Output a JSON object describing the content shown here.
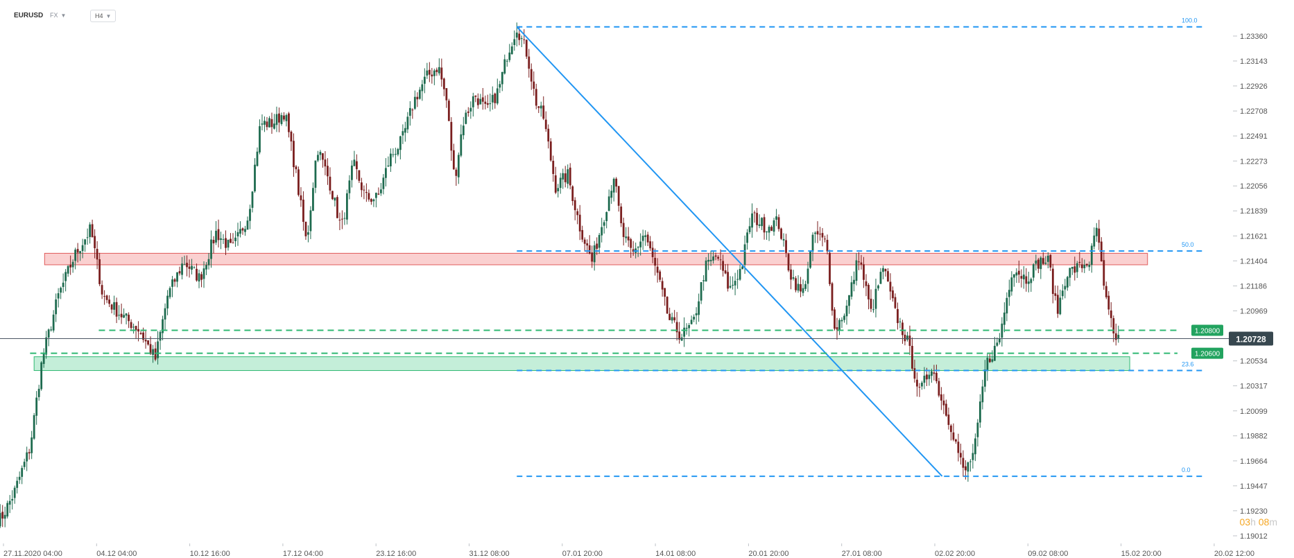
{
  "header": {
    "symbol": "EURUSD",
    "market": "FX",
    "timeframe": "H4"
  },
  "timer": {
    "h_value": "03",
    "h_unit": "h",
    "m_value": "08",
    "m_unit": "m"
  },
  "chart_data": {
    "type": "candlestick",
    "title": "",
    "ylim": [
      1.1901,
      1.2348
    ],
    "y_ticks": [
      "1.23360",
      "1.23143",
      "1.22926",
      "1.22708",
      "1.22491",
      "1.22273",
      "1.22056",
      "1.21839",
      "1.21621",
      "1.21404",
      "1.21186",
      "1.20969",
      "1.20751",
      "1.20534",
      "1.20317",
      "1.20099",
      "1.19882",
      "1.19664",
      "1.19447",
      "1.19230",
      "1.19012"
    ],
    "x_ticks": [
      "27.11.2020 04:00",
      "04.12 04:00",
      "10.12 16:00",
      "17.12 04:00",
      "23.12 16:00",
      "31.12 08:00",
      "07.01 20:00",
      "14.01 08:00",
      "20.01 20:00",
      "27.01 08:00",
      "02.02 20:00",
      "09.02 08:00",
      "15.02 20:00",
      "20.02 12:00"
    ],
    "last_price": "1.20728",
    "price_line_value": 1.20728,
    "colors": {
      "up": "#1e6b4f",
      "down": "#7a1e1e",
      "fib": "#2196f3",
      "support": "#2eb872",
      "resistance": "#e05a5a",
      "price_tag": "#37474f",
      "level_tag": "#22a35f"
    },
    "zones": [
      {
        "type": "resistance",
        "x_start": 8,
        "x_end": 1372,
        "y_low": 1.2137,
        "y_high": 1.2147
      },
      {
        "type": "support",
        "x_start": -5,
        "x_end": 1350,
        "y_low": 1.2045,
        "y_high": 1.2057
      }
    ],
    "levels": [
      {
        "value": 1.208,
        "label": "1.20800",
        "x_start": 75
      },
      {
        "value": 1.206,
        "label": "1.20600",
        "x_start": -10
      }
    ],
    "fib_levels": [
      {
        "label": "100.0",
        "value": 1.2344
      },
      {
        "label": "50.0",
        "value": 1.2149
      },
      {
        "label": "23.6",
        "value": 1.2045
      },
      {
        "label": "0.0",
        "value": 1.1953
      }
    ],
    "fib_range": {
      "x_start": 592,
      "x_end": 1440
    },
    "trendline": {
      "from": [
        592,
        1.2344
      ],
      "to": [
        1118,
        1.1953
      ]
    },
    "anchors": [
      [
        -46,
        1.1916
      ],
      [
        -30,
        1.1938
      ],
      [
        -10,
        1.1978
      ],
      [
        5,
        1.2055
      ],
      [
        25,
        1.211
      ],
      [
        45,
        1.2145
      ],
      [
        65,
        1.2168
      ],
      [
        80,
        1.211
      ],
      [
        100,
        1.2095
      ],
      [
        125,
        1.208
      ],
      [
        145,
        1.2055
      ],
      [
        160,
        1.211
      ],
      [
        180,
        1.214
      ],
      [
        200,
        1.2125
      ],
      [
        220,
        1.2165
      ],
      [
        240,
        1.215
      ],
      [
        260,
        1.218
      ],
      [
        275,
        1.226
      ],
      [
        290,
        1.226
      ],
      [
        305,
        1.227
      ],
      [
        318,
        1.222
      ],
      [
        332,
        1.2155
      ],
      [
        345,
        1.224
      ],
      [
        360,
        1.221
      ],
      [
        375,
        1.2168
      ],
      [
        390,
        1.2225
      ],
      [
        405,
        1.2195
      ],
      [
        420,
        1.2195
      ],
      [
        435,
        1.223
      ],
      [
        450,
        1.2245
      ],
      [
        465,
        1.228
      ],
      [
        480,
        1.23
      ],
      [
        495,
        1.231
      ],
      [
        505,
        1.228
      ],
      [
        515,
        1.221
      ],
      [
        525,
        1.226
      ],
      [
        540,
        1.2285
      ],
      [
        555,
        1.227
      ],
      [
        570,
        1.229
      ],
      [
        580,
        1.232
      ],
      [
        592,
        1.2344
      ],
      [
        605,
        1.232
      ],
      [
        615,
        1.228
      ],
      [
        625,
        1.2265
      ],
      [
        640,
        1.2205
      ],
      [
        655,
        1.2215
      ],
      [
        670,
        1.217
      ],
      [
        685,
        1.214
      ],
      [
        700,
        1.218
      ],
      [
        712,
        1.2215
      ],
      [
        722,
        1.2165
      ],
      [
        735,
        1.2145
      ],
      [
        750,
        1.2165
      ],
      [
        765,
        1.213
      ],
      [
        780,
        1.209
      ],
      [
        795,
        1.2075
      ],
      [
        810,
        1.2085
      ],
      [
        825,
        1.2135
      ],
      [
        840,
        1.2145
      ],
      [
        855,
        1.2115
      ],
      [
        870,
        1.2135
      ],
      [
        882,
        1.218
      ],
      [
        900,
        1.217
      ],
      [
        915,
        1.2175
      ],
      [
        930,
        1.213
      ],
      [
        945,
        1.211
      ],
      [
        960,
        1.2165
      ],
      [
        975,
        1.2155
      ],
      [
        985,
        1.208
      ],
      [
        1000,
        1.21
      ],
      [
        1015,
        1.2145
      ],
      [
        1030,
        1.2095
      ],
      [
        1045,
        1.2135
      ],
      [
        1060,
        1.2095
      ],
      [
        1075,
        1.207
      ],
      [
        1090,
        1.2025
      ],
      [
        1105,
        1.205
      ],
      [
        1115,
        1.2025
      ],
      [
        1130,
        1.1995
      ],
      [
        1145,
        1.1955
      ],
      [
        1158,
        1.1975
      ],
      [
        1172,
        1.205
      ],
      [
        1188,
        1.207
      ],
      [
        1205,
        1.2135
      ],
      [
        1222,
        1.2125
      ],
      [
        1238,
        1.214
      ],
      [
        1250,
        1.214
      ],
      [
        1260,
        1.2095
      ],
      [
        1272,
        1.213
      ],
      [
        1288,
        1.2135
      ],
      [
        1300,
        1.214
      ],
      [
        1310,
        1.217
      ],
      [
        1318,
        1.2115
      ],
      [
        1330,
        1.2075
      ],
      [
        1338,
        1.2073
      ]
    ],
    "x_range": [
      -50,
      1450
    ]
  }
}
